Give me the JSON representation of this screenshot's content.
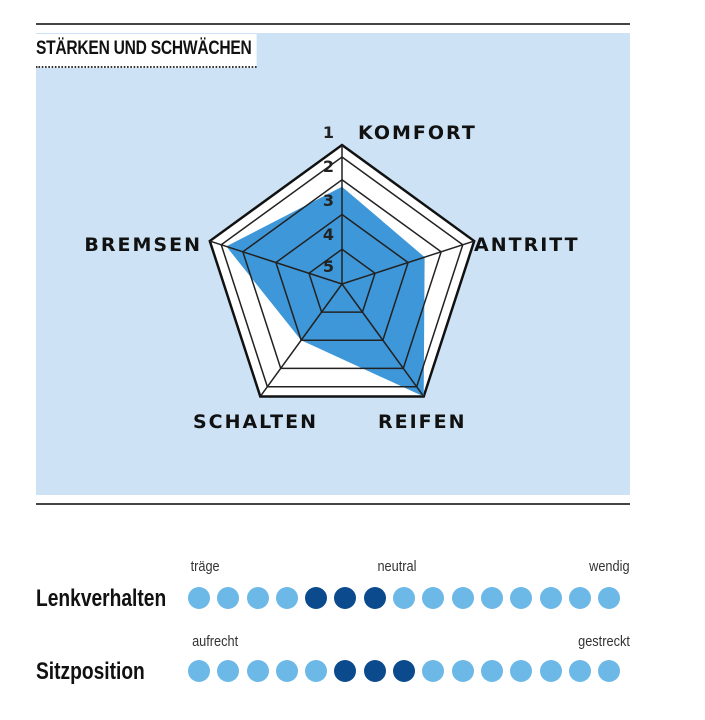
{
  "title": "STÄRKEN UND SCHWÄCHEN",
  "chart_data": {
    "type": "radar",
    "axes": [
      "KOMFORT",
      "ANTRITT",
      "REIFEN",
      "SCHALTEN",
      "BREMSEN"
    ],
    "values": [
      2.2,
      2.5,
      1,
      3,
      1.5
    ],
    "scale_ticks": [
      "1",
      "2",
      "3",
      "4",
      "5"
    ],
    "range": [
      5,
      1
    ],
    "fill_color": "#3d97d8"
  },
  "scales": [
    {
      "label": "Lenkverhalten",
      "left": "träge",
      "middle": "neutral",
      "right": "wendig",
      "dots": 15,
      "selected": [
        4,
        5,
        6
      ]
    },
    {
      "label": "Sitzposition",
      "left": "aufrecht",
      "right": "gestreckt",
      "dots": 15,
      "selected": [
        5,
        6,
        7
      ]
    }
  ],
  "colors": {
    "panel": "#cde3f5",
    "dot": "#6cb8e6",
    "dot_selected": "#0b4a8c"
  }
}
